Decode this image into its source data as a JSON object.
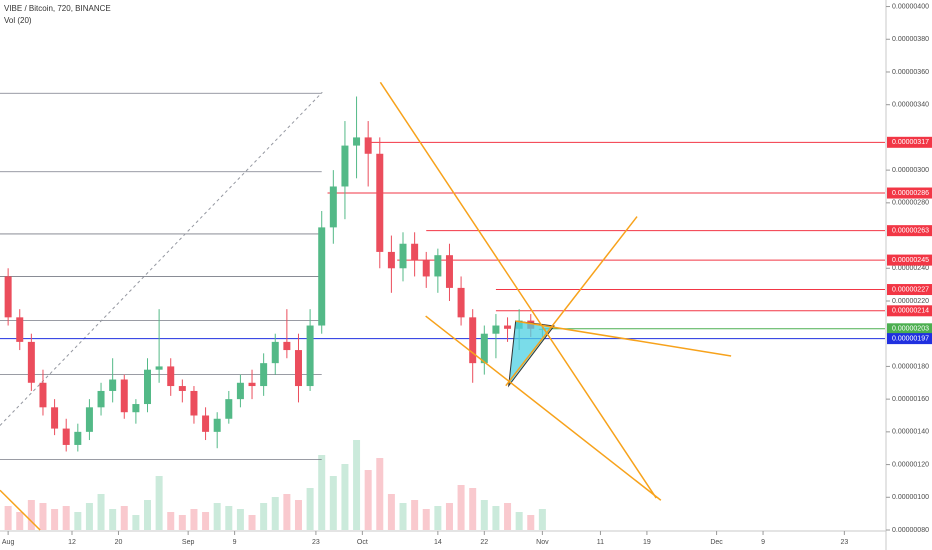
{
  "chart_data": {
    "type": "candlestick",
    "title": "VIBE / Bitcoin, 720, BINANCE",
    "subtitle": "Vol (20)",
    "x": [
      0,
      2,
      4,
      6,
      8,
      10,
      12,
      14,
      16,
      18,
      20,
      22,
      24,
      26,
      28,
      30,
      32,
      34,
      36,
      38,
      40,
      42,
      44,
      46,
      48,
      50,
      52,
      54,
      56,
      58,
      60,
      62,
      64,
      66,
      68,
      70,
      72,
      74,
      76,
      78,
      80,
      82,
      84,
      86,
      88,
      90,
      92
    ],
    "open": [
      2.35e-06,
      2.1e-06,
      1.95e-06,
      1.7e-06,
      1.55e-06,
      1.42e-06,
      1.32e-06,
      1.4e-06,
      1.55e-06,
      1.65e-06,
      1.72e-06,
      1.52e-06,
      1.57e-06,
      1.78e-06,
      1.8e-06,
      1.68e-06,
      1.65e-06,
      1.5e-06,
      1.4e-06,
      1.48e-06,
      1.6e-06,
      1.7e-06,
      1.68e-06,
      1.82e-06,
      1.95e-06,
      1.9e-06,
      1.68e-06,
      2.05e-06,
      2.65e-06,
      2.9e-06,
      3.15e-06,
      3.2e-06,
      3.1e-06,
      2.5e-06,
      2.4e-06,
      2.55e-06,
      2.45e-06,
      2.35e-06,
      2.48e-06,
      2.28e-06,
      2.1e-06,
      1.82e-06,
      2e-06,
      2.05e-06,
      2.03e-06,
      2.08e-06,
      2.03e-06
    ],
    "high": [
      2.4e-06,
      2.15e-06,
      2e-06,
      1.78e-06,
      1.6e-06,
      1.48e-06,
      1.45e-06,
      1.6e-06,
      1.7e-06,
      1.85e-06,
      1.75e-06,
      1.6e-06,
      1.85e-06,
      2.15e-06,
      1.85e-06,
      1.72e-06,
      1.68e-06,
      1.55e-06,
      1.52e-06,
      1.65e-06,
      1.75e-06,
      1.78e-06,
      1.88e-06,
      2e-06,
      2.15e-06,
      2e-06,
      2.15e-06,
      2.75e-06,
      3e-06,
      3.3e-06,
      3.45e-06,
      3.3e-06,
      3.2e-06,
      2.6e-06,
      2.62e-06,
      2.62e-06,
      2.5e-06,
      2.52e-06,
      2.55e-06,
      2.35e-06,
      2.15e-06,
      2.05e-06,
      2.12e-06,
      2.1e-06,
      2.15e-06,
      2.12e-06,
      2.06e-06
    ],
    "low": [
      2.05e-06,
      1.9e-06,
      1.65e-06,
      1.5e-06,
      1.38e-06,
      1.28e-06,
      1.28e-06,
      1.35e-06,
      1.5e-06,
      1.58e-06,
      1.48e-06,
      1.45e-06,
      1.52e-06,
      1.7e-06,
      1.62e-06,
      1.58e-06,
      1.45e-06,
      1.35e-06,
      1.3e-06,
      1.45e-06,
      1.55e-06,
      1.6e-06,
      1.62e-06,
      1.75e-06,
      1.85e-06,
      1.58e-06,
      1.65e-06,
      2e-06,
      2.55e-06,
      2.7e-06,
      2.95e-06,
      2.9e-06,
      2.4e-06,
      2.25e-06,
      2.32e-06,
      2.35e-06,
      2.28e-06,
      2.25e-06,
      2.2e-06,
      2.05e-06,
      1.7e-06,
      1.75e-06,
      1.85e-06,
      1.95e-06,
      1.9e-06,
      1.98e-06,
      1.98e-06
    ],
    "close": [
      2.1e-06,
      1.95e-06,
      1.7e-06,
      1.55e-06,
      1.42e-06,
      1.32e-06,
      1.4e-06,
      1.55e-06,
      1.65e-06,
      1.72e-06,
      1.52e-06,
      1.57e-06,
      1.78e-06,
      1.8e-06,
      1.68e-06,
      1.65e-06,
      1.5e-06,
      1.4e-06,
      1.48e-06,
      1.6e-06,
      1.7e-06,
      1.68e-06,
      1.82e-06,
      1.95e-06,
      1.9e-06,
      1.68e-06,
      2.05e-06,
      2.65e-06,
      2.9e-06,
      3.15e-06,
      3.2e-06,
      3.1e-06,
      2.5e-06,
      2.4e-06,
      2.55e-06,
      2.45e-06,
      2.35e-06,
      2.48e-06,
      2.28e-06,
      2.1e-06,
      1.82e-06,
      2e-06,
      2.05e-06,
      2.03e-06,
      2.08e-06,
      2.03e-06,
      2.03e-06
    ],
    "volumes": [
      8,
      6,
      10,
      9,
      7,
      8,
      6,
      9,
      12,
      7,
      8,
      5,
      10,
      18,
      6,
      5,
      7,
      6,
      9,
      8,
      7,
      5,
      9,
      11,
      12,
      10,
      14,
      25,
      18,
      22,
      30,
      20,
      24,
      12,
      9,
      10,
      7,
      8,
      9,
      15,
      14,
      10,
      8,
      9,
      6,
      5,
      7
    ],
    "up_color": "#53b987",
    "down_color": "#eb4d5c",
    "xlim": [
      -1.4,
      151
    ],
    "ylim": [
      8e-07,
      4.04e-06
    ],
    "xticks": [
      {
        "value": 0,
        "label": "Aug"
      },
      {
        "value": 11,
        "label": "12"
      },
      {
        "value": 19,
        "label": "20"
      },
      {
        "value": 31,
        "label": "Sep"
      },
      {
        "value": 39,
        "label": "9"
      },
      {
        "value": 53,
        "label": "23"
      },
      {
        "value": 61,
        "label": "Oct"
      },
      {
        "value": 74,
        "label": "14"
      },
      {
        "value": 82,
        "label": "22"
      },
      {
        "value": 92,
        "label": "Nov"
      },
      {
        "value": 102,
        "label": "11"
      },
      {
        "value": 110,
        "label": "19"
      },
      {
        "value": 122,
        "label": "Dec"
      },
      {
        "value": 130,
        "label": "9"
      },
      {
        "value": 144,
        "label": "23"
      }
    ],
    "yticks": [
      {
        "value": 4e-06,
        "label": "0.00000400"
      },
      {
        "value": 3.8e-06,
        "label": "0.00000380"
      },
      {
        "value": 3.6e-06,
        "label": "0.00000360"
      },
      {
        "value": 3.4e-06,
        "label": "0.00000340"
      },
      {
        "value": 3e-06,
        "label": "0.00000300"
      },
      {
        "value": 2.8e-06,
        "label": "0.00000280"
      },
      {
        "value": 2.4e-06,
        "label": "0.00000240"
      },
      {
        "value": 2.2e-06,
        "label": "0.00000220"
      },
      {
        "value": 1.8e-06,
        "label": "0.00000180"
      },
      {
        "value": 1.6e-06,
        "label": "0.00000160"
      },
      {
        "value": 1.4e-06,
        "label": "0.00000140"
      },
      {
        "value": 1.2e-06,
        "label": "0.00000120"
      },
      {
        "value": 1e-06,
        "label": "0.00000100"
      },
      {
        "value": 8e-07,
        "label": "0.00000080"
      }
    ],
    "levels": [
      {
        "value": 3.17e-06,
        "label": "0.00000317",
        "color": "#f23645",
        "from": 62
      },
      {
        "value": 2.86e-06,
        "label": "0.00000286",
        "color": "#f23645",
        "from": 55
      },
      {
        "value": 2.63e-06,
        "label": "0.00000263",
        "color": "#f23645",
        "from": 72
      },
      {
        "value": 2.45e-06,
        "label": "0.00000245",
        "color": "#f23645",
        "from": 67
      },
      {
        "value": 2.27e-06,
        "label": "0.00000227",
        "color": "#f23645",
        "from": 84
      },
      {
        "value": 2.14e-06,
        "label": "0.00000214",
        "color": "#f23645",
        "from": 84
      },
      {
        "value": 2.03e-06,
        "label": "0.00000203",
        "color": "#4caf50",
        "from": 92
      },
      {
        "value": 1.97e-06,
        "label": "0.00000197",
        "color": "#2030e0",
        "from": -1.4
      }
    ],
    "gray_levels": {
      "color": "#787b86",
      "from": -1.4,
      "to": 54,
      "values": [
        3.47e-06,
        2.99e-06,
        2.61e-06,
        2.35e-06,
        2.08e-06,
        1.75e-06,
        1.23e-06
      ]
    },
    "trend_lines": {
      "color": "#f7a21b",
      "lines": [
        [
          [
            64.1,
            3.537e-06
          ],
          [
            111.6,
            9.95e-07
          ]
        ],
        [
          [
            71.9,
            2.108e-06
          ],
          [
            112.4,
            9.82e-07
          ]
        ],
        [
          [
            85.7,
            1.682e-06
          ],
          [
            108.3,
            2.716e-06
          ]
        ],
        [
          [
            87.4,
            2.077e-06
          ],
          [
            124.5,
            1.864e-06
          ]
        ],
        [
          [
            -1.4,
            1.043e-06
          ],
          [
            5.5,
            8e-07
          ]
        ]
      ]
    },
    "dashed_line": {
      "color": "#9598a1",
      "points": [
        [
          -1.4,
          1.439e-06
        ],
        [
          54.1,
          3.476e-06
        ]
      ]
    },
    "triangle": {
      "color": "#4dd0e1",
      "points": [
        [
          87.4,
          2.077e-06
        ],
        [
          86.2,
          1.682e-06
        ],
        [
          94,
          2.047e-06
        ]
      ]
    }
  }
}
